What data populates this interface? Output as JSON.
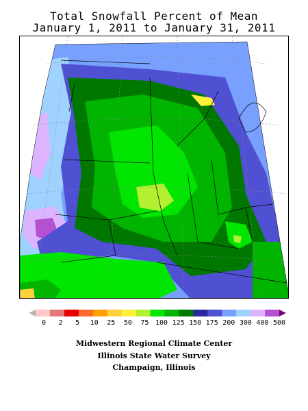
{
  "title_line1": "Total Snowfall Percent of Mean",
  "title_line2": "January 1, 2011 to January 31, 2011",
  "legend": {
    "labels": [
      "0",
      "2",
      "5",
      "10",
      "25",
      "50",
      "75",
      "100",
      "125",
      "150",
      "175",
      "200",
      "300",
      "400",
      "500"
    ],
    "colors": [
      "#b4b4b4",
      "#ffc8c8",
      "#e87878",
      "#e60000",
      "#ff6a2a",
      "#ffa000",
      "#ffd23c",
      "#fff03c",
      "#b4f032",
      "#00e600",
      "#00b400",
      "#007800",
      "#2828a0",
      "#5050d2",
      "#78a0ff",
      "#a0d2ff",
      "#dcb4ff",
      "#b450d2",
      "#780078"
    ]
  },
  "credits": {
    "line1": "Midwestern Regional Climate Center",
    "line2": "Illinois State Water Survey",
    "line3": "Champaign, Illinois"
  }
}
